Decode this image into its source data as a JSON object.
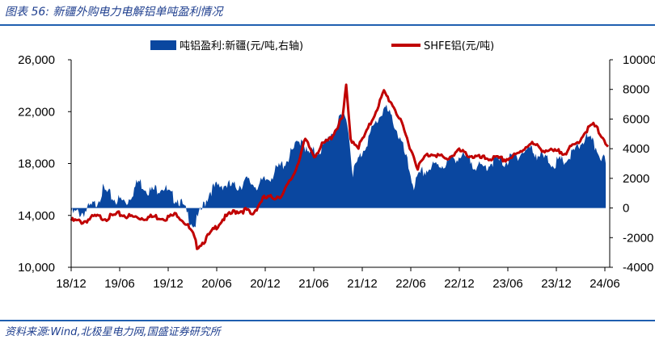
{
  "title": "图表 56:  新疆外购电力电解铝单吨盈利情况",
  "source": "资料来源:Wind,北极星电力网,国盛证券研究所",
  "colors": {
    "area": "#0a47a0",
    "line": "#c00000",
    "rule": "#1f5fb0"
  },
  "chart_data": {
    "type": "area+line",
    "legend_position": "top",
    "grid": false,
    "x_ticks": [
      "18/12",
      "19/06",
      "19/12",
      "20/06",
      "20/12",
      "21/06",
      "21/12",
      "22/06",
      "22/12",
      "23/06",
      "23/12",
      "24/06"
    ],
    "left_axis": {
      "ticks": [
        "10,000",
        "14,000",
        "18,000",
        "22,000",
        "26,000"
      ],
      "range": [
        10000,
        26000
      ]
    },
    "right_axis": {
      "ticks": [
        "-4000",
        "-2000",
        "0",
        "2000",
        "4000",
        "6000",
        "8000",
        "10000"
      ],
      "range": [
        -4000,
        10000
      ]
    },
    "series": [
      {
        "name": "吨铝盈利:新疆(元/吨,右轴)",
        "kind": "area",
        "axis": "right",
        "points": [
          [
            "2018-12-01",
            -400
          ],
          [
            "2019-01-15",
            -300
          ],
          [
            "2019-03-01",
            200
          ],
          [
            "2019-04-01",
            1200
          ],
          [
            "2019-05-15",
            600
          ],
          [
            "2019-07-01",
            400
          ],
          [
            "2019-08-15",
            1800
          ],
          [
            "2019-10-01",
            1100
          ],
          [
            "2019-11-15",
            1500
          ],
          [
            "2019-12-15",
            800
          ],
          [
            "2020-01-15",
            600
          ],
          [
            "2020-02-15",
            -400
          ],
          [
            "2020-03-15",
            -1200
          ],
          [
            "2020-04-10",
            -200
          ],
          [
            "2020-05-15",
            1200
          ],
          [
            "2020-07-01",
            1600
          ],
          [
            "2020-08-15",
            1400
          ],
          [
            "2020-10-01",
            1800
          ],
          [
            "2020-11-15",
            1500
          ],
          [
            "2020-12-15",
            1900
          ],
          [
            "2021-01-15",
            2400
          ],
          [
            "2021-03-01",
            3200
          ],
          [
            "2021-05-01",
            4800
          ],
          [
            "2021-05-20",
            3600
          ],
          [
            "2021-07-15",
            4000
          ],
          [
            "2021-09-01",
            5400
          ],
          [
            "2021-10-15",
            6400
          ],
          [
            "2021-11-10",
            2400
          ],
          [
            "2021-12-15",
            3800
          ],
          [
            "2022-02-01",
            5600
          ],
          [
            "2022-03-10",
            6800
          ],
          [
            "2022-04-15",
            5800
          ],
          [
            "2022-05-20",
            4000
          ],
          [
            "2022-06-30",
            1500
          ],
          [
            "2022-08-01",
            2400
          ],
          [
            "2022-09-15",
            2800
          ],
          [
            "2022-11-01",
            3000
          ],
          [
            "2022-12-15",
            3500
          ],
          [
            "2023-02-01",
            3200
          ],
          [
            "2023-03-15",
            2600
          ],
          [
            "2023-05-01",
            3200
          ],
          [
            "2023-06-15",
            3100
          ],
          [
            "2023-08-01",
            3600
          ],
          [
            "2023-09-15",
            4000
          ],
          [
            "2023-11-01",
            3400
          ],
          [
            "2023-12-15",
            3000
          ],
          [
            "2024-02-01",
            3200
          ],
          [
            "2024-03-15",
            4000
          ],
          [
            "2024-04-15",
            4800
          ],
          [
            "2024-05-20",
            4200
          ],
          [
            "2024-07-01",
            3000
          ]
        ]
      },
      {
        "name": "SHFE铝(元/吨)",
        "kind": "line",
        "axis": "left",
        "points": [
          [
            "2018-12-01",
            13600
          ],
          [
            "2019-01-15",
            13500
          ],
          [
            "2019-03-01",
            13900
          ],
          [
            "2019-04-15",
            13800
          ],
          [
            "2019-06-01",
            14100
          ],
          [
            "2019-07-15",
            13900
          ],
          [
            "2019-09-01",
            13800
          ],
          [
            "2019-10-15",
            13900
          ],
          [
            "2019-11-30",
            13800
          ],
          [
            "2020-01-10",
            14100
          ],
          [
            "2020-02-15",
            13300
          ],
          [
            "2020-03-10",
            12500
          ],
          [
            "2020-03-25",
            11600
          ],
          [
            "2020-04-15",
            11900
          ],
          [
            "2020-05-20",
            12700
          ],
          [
            "2020-07-01",
            13700
          ],
          [
            "2020-08-15",
            14300
          ],
          [
            "2020-10-01",
            14400
          ],
          [
            "2020-10-20",
            14000
          ],
          [
            "2020-12-01",
            15300
          ],
          [
            "2021-01-15",
            15400
          ],
          [
            "2021-02-15",
            15600
          ],
          [
            "2021-04-01",
            17300
          ],
          [
            "2021-05-12",
            19800
          ],
          [
            "2021-06-15",
            18600
          ],
          [
            "2021-07-15",
            19400
          ],
          [
            "2021-08-15",
            19900
          ],
          [
            "2021-10-01",
            21500
          ],
          [
            "2021-10-15",
            23900
          ],
          [
            "2021-11-01",
            19900
          ],
          [
            "2021-12-01",
            19300
          ],
          [
            "2022-01-01",
            20400
          ],
          [
            "2022-03-08",
            23500
          ],
          [
            "2022-04-15",
            22400
          ],
          [
            "2022-05-15",
            21000
          ],
          [
            "2022-07-15",
            17700
          ],
          [
            "2022-08-15",
            18600
          ],
          [
            "2022-09-15",
            18800
          ],
          [
            "2022-11-01",
            18300
          ],
          [
            "2022-12-15",
            19000
          ],
          [
            "2023-02-01",
            18600
          ],
          [
            "2023-03-15",
            18400
          ],
          [
            "2023-05-01",
            18400
          ],
          [
            "2023-06-15",
            18300
          ],
          [
            "2023-08-01",
            18700
          ],
          [
            "2023-09-15",
            19600
          ],
          [
            "2023-11-01",
            19100
          ],
          [
            "2023-12-15",
            18900
          ],
          [
            "2024-02-01",
            18900
          ],
          [
            "2024-03-15",
            19600
          ],
          [
            "2024-04-20",
            20600
          ],
          [
            "2024-05-15",
            21000
          ],
          [
            "2024-06-15",
            20200
          ],
          [
            "2024-07-10",
            19300
          ]
        ]
      }
    ]
  }
}
